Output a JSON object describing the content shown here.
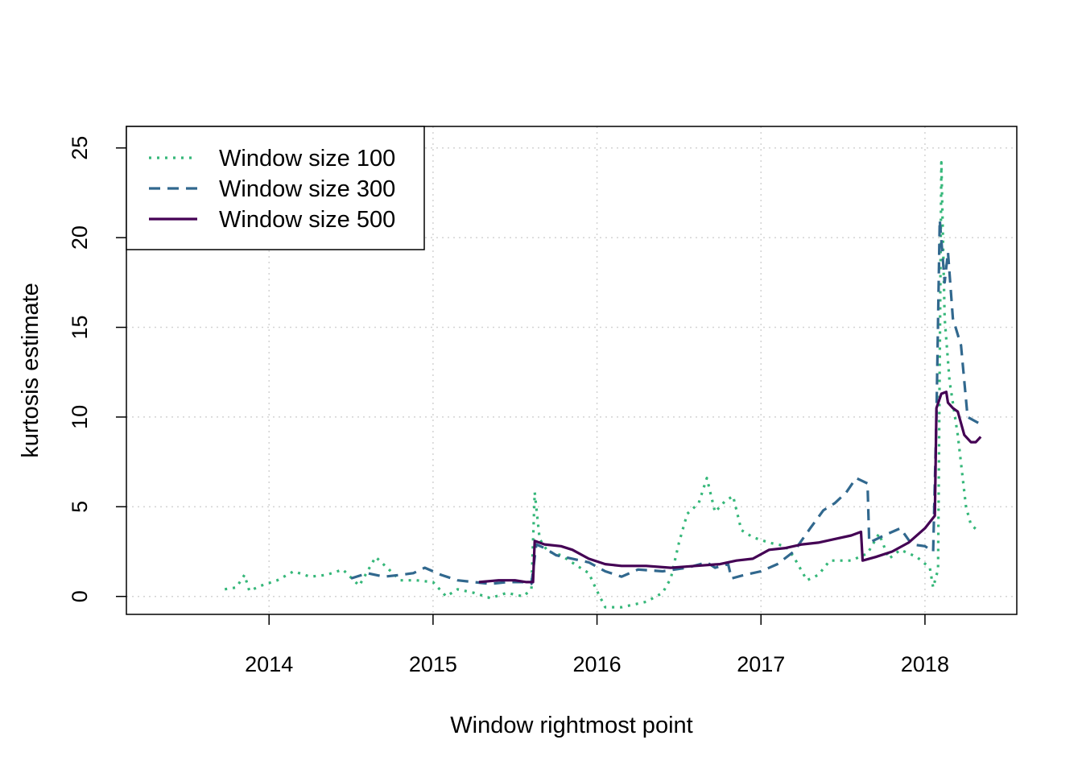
{
  "chart_data": {
    "type": "line",
    "title": "",
    "xlabel": "Window rightmost point",
    "ylabel": "kurtosis estimate",
    "xlim": [
      2013.13,
      2018.56
    ],
    "ylim": [
      -1.0,
      26.2
    ],
    "x_ticks": [
      2014,
      2015,
      2016,
      2017,
      2018
    ],
    "x_tick_labels": [
      "2014",
      "2015",
      "2016",
      "2017",
      "2018"
    ],
    "y_ticks": [
      0,
      5,
      10,
      15,
      20,
      25
    ],
    "y_tick_labels": [
      "0",
      "5",
      "10",
      "15",
      "20",
      "25"
    ],
    "grid": true,
    "legend_position": "top-left",
    "series": [
      {
        "name": "Window size 100",
        "color": "#35b779",
        "style": "dotted",
        "points": [
          [
            2013.73,
            0.4
          ],
          [
            2013.8,
            0.5
          ],
          [
            2013.85,
            1.2
          ],
          [
            2013.88,
            0.3
          ],
          [
            2013.95,
            0.6
          ],
          [
            2014.05,
            0.9
          ],
          [
            2014.15,
            1.4
          ],
          [
            2014.25,
            1.1
          ],
          [
            2014.35,
            1.2
          ],
          [
            2014.45,
            1.5
          ],
          [
            2014.55,
            0.6
          ],
          [
            2014.65,
            2.2
          ],
          [
            2014.72,
            1.6
          ],
          [
            2014.8,
            0.9
          ],
          [
            2014.9,
            0.9
          ],
          [
            2015.0,
            0.8
          ],
          [
            2015.08,
            0.0
          ],
          [
            2015.15,
            0.4
          ],
          [
            2015.25,
            0.2
          ],
          [
            2015.35,
            -0.1
          ],
          [
            2015.45,
            0.2
          ],
          [
            2015.55,
            0.0
          ],
          [
            2015.6,
            0.4
          ],
          [
            2015.62,
            5.8
          ],
          [
            2015.65,
            3.2
          ],
          [
            2015.7,
            2.5
          ],
          [
            2015.78,
            2.3
          ],
          [
            2015.88,
            1.7
          ],
          [
            2015.95,
            1.3
          ],
          [
            2016.0,
            0.3
          ],
          [
            2016.05,
            -0.6
          ],
          [
            2016.15,
            -0.6
          ],
          [
            2016.3,
            -0.3
          ],
          [
            2016.4,
            0.2
          ],
          [
            2016.45,
            1.0
          ],
          [
            2016.5,
            3.0
          ],
          [
            2016.55,
            4.6
          ],
          [
            2016.62,
            5.2
          ],
          [
            2016.67,
            6.6
          ],
          [
            2016.72,
            4.7
          ],
          [
            2016.78,
            5.3
          ],
          [
            2016.83,
            5.6
          ],
          [
            2016.88,
            3.7
          ],
          [
            2016.95,
            3.3
          ],
          [
            2017.05,
            3.0
          ],
          [
            2017.15,
            2.8
          ],
          [
            2017.2,
            2.2
          ],
          [
            2017.28,
            0.9
          ],
          [
            2017.35,
            1.2
          ],
          [
            2017.42,
            2.0
          ],
          [
            2017.55,
            2.0
          ],
          [
            2017.65,
            2.4
          ],
          [
            2017.72,
            3.5
          ],
          [
            2017.78,
            2.1
          ],
          [
            2017.85,
            2.6
          ],
          [
            2017.95,
            2.2
          ],
          [
            2018.03,
            1.6
          ],
          [
            2018.05,
            0.5
          ],
          [
            2018.08,
            1.5
          ],
          [
            2018.1,
            24.2
          ],
          [
            2018.12,
            15.5
          ],
          [
            2018.15,
            12.0
          ],
          [
            2018.2,
            9.0
          ],
          [
            2018.25,
            5.0
          ],
          [
            2018.28,
            4.0
          ],
          [
            2018.33,
            3.6
          ]
        ]
      },
      {
        "name": "Window size 300",
        "color": "#31688e",
        "style": "dashed",
        "points": [
          [
            2014.5,
            1.0
          ],
          [
            2014.6,
            1.3
          ],
          [
            2014.7,
            1.1
          ],
          [
            2014.8,
            1.2
          ],
          [
            2014.88,
            1.3
          ],
          [
            2014.95,
            1.6
          ],
          [
            2015.05,
            1.2
          ],
          [
            2015.15,
            0.9
          ],
          [
            2015.25,
            0.8
          ],
          [
            2015.35,
            0.7
          ],
          [
            2015.45,
            0.8
          ],
          [
            2015.55,
            0.8
          ],
          [
            2015.6,
            0.7
          ],
          [
            2015.63,
            2.9
          ],
          [
            2015.68,
            2.7
          ],
          [
            2015.75,
            2.3
          ],
          [
            2015.85,
            2.1
          ],
          [
            2015.95,
            1.9
          ],
          [
            2016.05,
            1.4
          ],
          [
            2016.15,
            1.1
          ],
          [
            2016.25,
            1.5
          ],
          [
            2016.4,
            1.4
          ],
          [
            2016.55,
            1.6
          ],
          [
            2016.67,
            1.9
          ],
          [
            2016.72,
            1.6
          ],
          [
            2016.8,
            1.8
          ],
          [
            2016.82,
            1.0
          ],
          [
            2016.9,
            1.2
          ],
          [
            2017.0,
            1.4
          ],
          [
            2017.1,
            1.8
          ],
          [
            2017.2,
            2.5
          ],
          [
            2017.3,
            3.8
          ],
          [
            2017.38,
            4.8
          ],
          [
            2017.45,
            5.2
          ],
          [
            2017.52,
            5.8
          ],
          [
            2017.58,
            6.6
          ],
          [
            2017.65,
            6.3
          ],
          [
            2017.66,
            3.0
          ],
          [
            2017.75,
            3.4
          ],
          [
            2017.85,
            3.8
          ],
          [
            2017.92,
            2.9
          ],
          [
            2018.0,
            2.8
          ],
          [
            2018.05,
            2.5
          ],
          [
            2018.07,
            10.0
          ],
          [
            2018.09,
            21.0
          ],
          [
            2018.12,
            17.5
          ],
          [
            2018.14,
            19.2
          ],
          [
            2018.17,
            15.5
          ],
          [
            2018.22,
            14.0
          ],
          [
            2018.26,
            10.0
          ],
          [
            2018.3,
            9.8
          ],
          [
            2018.34,
            9.6
          ]
        ]
      },
      {
        "name": "Window size 500",
        "color": "#440154",
        "style": "solid",
        "points": [
          [
            2015.28,
            0.8
          ],
          [
            2015.4,
            0.9
          ],
          [
            2015.5,
            0.9
          ],
          [
            2015.57,
            0.8
          ],
          [
            2015.61,
            0.8
          ],
          [
            2015.62,
            3.1
          ],
          [
            2015.68,
            2.9
          ],
          [
            2015.78,
            2.8
          ],
          [
            2015.85,
            2.6
          ],
          [
            2015.95,
            2.1
          ],
          [
            2016.05,
            1.8
          ],
          [
            2016.15,
            1.7
          ],
          [
            2016.3,
            1.7
          ],
          [
            2016.45,
            1.6
          ],
          [
            2016.6,
            1.7
          ],
          [
            2016.75,
            1.8
          ],
          [
            2016.85,
            2.0
          ],
          [
            2016.95,
            2.1
          ],
          [
            2017.05,
            2.6
          ],
          [
            2017.15,
            2.7
          ],
          [
            2017.25,
            2.9
          ],
          [
            2017.35,
            3.0
          ],
          [
            2017.45,
            3.2
          ],
          [
            2017.55,
            3.4
          ],
          [
            2017.61,
            3.6
          ],
          [
            2017.62,
            2.0
          ],
          [
            2017.7,
            2.2
          ],
          [
            2017.8,
            2.5
          ],
          [
            2017.9,
            3.0
          ],
          [
            2018.0,
            3.8
          ],
          [
            2018.06,
            4.5
          ],
          [
            2018.07,
            10.5
          ],
          [
            2018.1,
            11.3
          ],
          [
            2018.13,
            11.4
          ],
          [
            2018.14,
            10.8
          ],
          [
            2018.17,
            10.5
          ],
          [
            2018.2,
            10.3
          ],
          [
            2018.24,
            9.0
          ],
          [
            2018.28,
            8.6
          ],
          [
            2018.31,
            8.6
          ],
          [
            2018.34,
            8.9
          ]
        ]
      }
    ]
  }
}
